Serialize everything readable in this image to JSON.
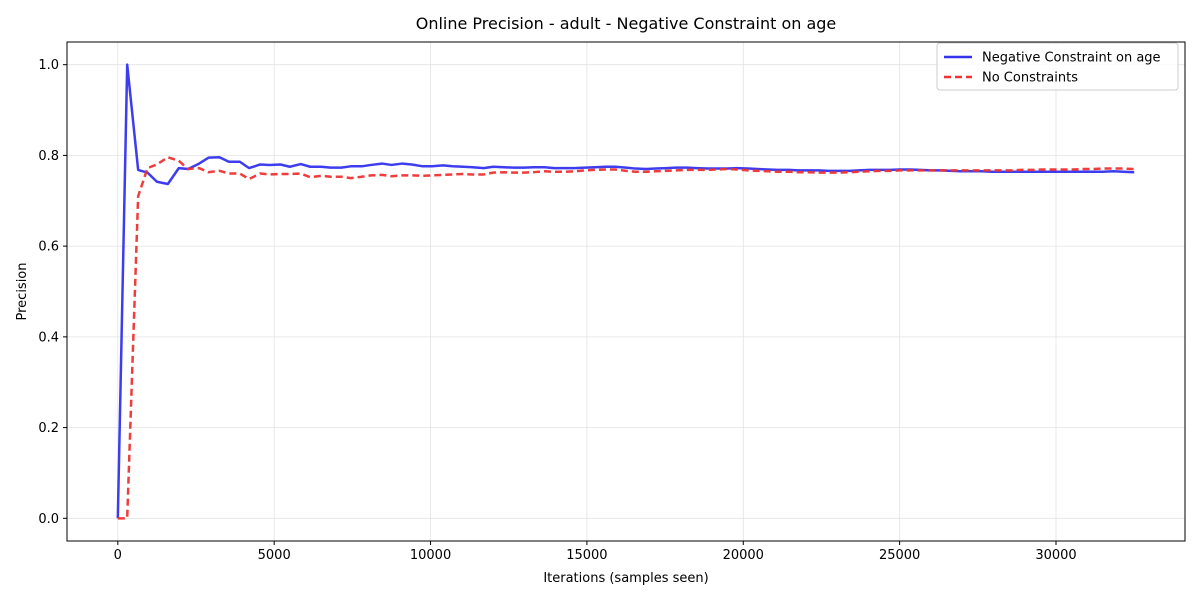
{
  "chart_data": {
    "type": "line",
    "title": "Online Precision - adult - Negative Constraint on age",
    "xlabel": "Iterations (samples seen)",
    "ylabel": "Precision",
    "xlim": [
      -1625,
      34125
    ],
    "ylim": [
      -0.05,
      1.05
    ],
    "xticks": [
      0,
      5000,
      10000,
      15000,
      20000,
      25000,
      30000
    ],
    "yticks": [
      0.0,
      0.2,
      0.4,
      0.6,
      0.8,
      1.0
    ],
    "xtick_labels": [
      "0",
      "5000",
      "10000",
      "15000",
      "20000",
      "25000",
      "30000"
    ],
    "ytick_labels": [
      "0.0",
      "0.2",
      "0.4",
      "0.6",
      "0.8",
      "1.0"
    ],
    "grid": true,
    "legend_position": "top-right",
    "series": [
      {
        "name": "Negative Constraint on age",
        "color": "#3333ee",
        "style": "solid",
        "x": [
          0,
          300,
          650,
          950,
          1250,
          1600,
          1950,
          2250,
          2600,
          2900,
          3250,
          3550,
          3900,
          4200,
          4550,
          4850,
          5200,
          5500,
          5850,
          6150,
          6500,
          6800,
          7150,
          7450,
          7800,
          8100,
          8450,
          8750,
          9100,
          9400,
          9750,
          10050,
          10400,
          10700,
          11050,
          11350,
          11700,
          12000,
          12350,
          12650,
          13000,
          13300,
          13650,
          13950,
          14300,
          14600,
          14950,
          15250,
          15600,
          15900,
          16250,
          16550,
          16900,
          17200,
          17550,
          17850,
          18200,
          18500,
          18850,
          19150,
          19500,
          19800,
          20150,
          20450,
          20800,
          21100,
          21450,
          21750,
          22100,
          22400,
          22750,
          23050,
          23400,
          23700,
          24050,
          24350,
          24700,
          25000,
          25350,
          25650,
          26000,
          26300,
          26650,
          26950,
          27300,
          27600,
          27950,
          28250,
          28600,
          28900,
          29250,
          29550,
          29900,
          30200,
          30550,
          30850,
          31200,
          31500,
          31850,
          32150,
          32500
        ],
        "y": [
          0.0,
          1.0,
          0.768,
          0.762,
          0.742,
          0.737,
          0.772,
          0.77,
          0.782,
          0.795,
          0.796,
          0.786,
          0.786,
          0.772,
          0.78,
          0.779,
          0.78,
          0.775,
          0.781,
          0.775,
          0.775,
          0.773,
          0.773,
          0.776,
          0.776,
          0.779,
          0.782,
          0.779,
          0.782,
          0.78,
          0.776,
          0.776,
          0.778,
          0.776,
          0.775,
          0.774,
          0.772,
          0.775,
          0.774,
          0.773,
          0.773,
          0.774,
          0.774,
          0.772,
          0.772,
          0.772,
          0.773,
          0.774,
          0.775,
          0.775,
          0.773,
          0.771,
          0.77,
          0.771,
          0.772,
          0.773,
          0.773,
          0.772,
          0.771,
          0.771,
          0.771,
          0.772,
          0.771,
          0.77,
          0.769,
          0.768,
          0.768,
          0.767,
          0.767,
          0.767,
          0.766,
          0.766,
          0.766,
          0.767,
          0.768,
          0.768,
          0.768,
          0.769,
          0.769,
          0.768,
          0.767,
          0.767,
          0.766,
          0.765,
          0.765,
          0.765,
          0.764,
          0.764,
          0.764,
          0.764,
          0.764,
          0.764,
          0.764,
          0.764,
          0.764,
          0.764,
          0.764,
          0.764,
          0.765,
          0.764,
          0.763
        ]
      },
      {
        "name": "No Constraints",
        "color": "#ee3333",
        "style": "dashed",
        "x": [
          0,
          300,
          650,
          950,
          1250,
          1600,
          1950,
          2250,
          2600,
          2900,
          3250,
          3550,
          3900,
          4200,
          4550,
          4850,
          5200,
          5500,
          5850,
          6150,
          6500,
          6800,
          7150,
          7450,
          7800,
          8100,
          8450,
          8750,
          9100,
          9400,
          9750,
          10050,
          10400,
          10700,
          11050,
          11350,
          11700,
          12000,
          12350,
          12650,
          13000,
          13300,
          13650,
          13950,
          14300,
          14600,
          14950,
          15250,
          15600,
          15900,
          16250,
          16550,
          16900,
          17200,
          17550,
          17850,
          18200,
          18500,
          18850,
          19150,
          19500,
          19800,
          20150,
          20450,
          20800,
          21100,
          21450,
          21750,
          22100,
          22400,
          22750,
          23050,
          23400,
          23700,
          24050,
          24350,
          24700,
          25000,
          25350,
          25650,
          26000,
          26300,
          26650,
          26950,
          27300,
          27600,
          27950,
          28250,
          28600,
          28900,
          29250,
          29550,
          29900,
          30200,
          30550,
          30850,
          31200,
          31500,
          31850,
          32150,
          32500
        ],
        "y": [
          0.0,
          0.0,
          0.71,
          0.772,
          0.78,
          0.796,
          0.788,
          0.77,
          0.772,
          0.763,
          0.766,
          0.76,
          0.76,
          0.748,
          0.76,
          0.758,
          0.759,
          0.759,
          0.76,
          0.752,
          0.755,
          0.753,
          0.753,
          0.75,
          0.753,
          0.756,
          0.757,
          0.754,
          0.756,
          0.756,
          0.755,
          0.756,
          0.757,
          0.758,
          0.759,
          0.758,
          0.758,
          0.762,
          0.763,
          0.762,
          0.762,
          0.763,
          0.765,
          0.764,
          0.764,
          0.765,
          0.767,
          0.768,
          0.769,
          0.769,
          0.766,
          0.764,
          0.764,
          0.765,
          0.766,
          0.767,
          0.768,
          0.768,
          0.768,
          0.769,
          0.77,
          0.769,
          0.767,
          0.766,
          0.765,
          0.764,
          0.764,
          0.763,
          0.763,
          0.762,
          0.762,
          0.762,
          0.763,
          0.764,
          0.765,
          0.766,
          0.766,
          0.767,
          0.767,
          0.767,
          0.767,
          0.767,
          0.767,
          0.767,
          0.767,
          0.767,
          0.767,
          0.767,
          0.767,
          0.768,
          0.768,
          0.769,
          0.769,
          0.769,
          0.769,
          0.77,
          0.77,
          0.771,
          0.771,
          0.771,
          0.77
        ]
      }
    ]
  }
}
